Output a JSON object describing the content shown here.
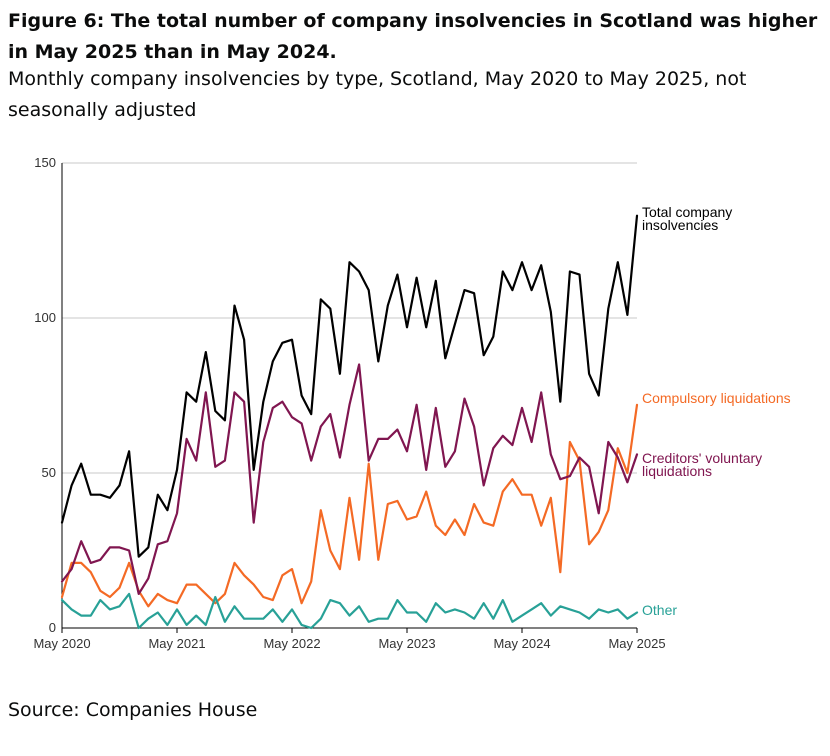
{
  "header": {
    "title": "Figure 6: The total number of company insolvencies in Scotland was higher in May 2025 than in May 2024.",
    "subtitle": "Monthly company insolvencies by type, Scotland, May 2020 to May 2025, not seasonally adjusted"
  },
  "footer": {
    "source": "Source: Companies House"
  },
  "chart_data": {
    "type": "line",
    "x": [
      "2020-05",
      "2020-06",
      "2020-07",
      "2020-08",
      "2020-09",
      "2020-10",
      "2020-11",
      "2020-12",
      "2021-01",
      "2021-02",
      "2021-03",
      "2021-04",
      "2021-05",
      "2021-06",
      "2021-07",
      "2021-08",
      "2021-09",
      "2021-10",
      "2021-11",
      "2021-12",
      "2022-01",
      "2022-02",
      "2022-03",
      "2022-04",
      "2022-05",
      "2022-06",
      "2022-07",
      "2022-08",
      "2022-09",
      "2022-10",
      "2022-11",
      "2022-12",
      "2023-01",
      "2023-02",
      "2023-03",
      "2023-04",
      "2023-05",
      "2023-06",
      "2023-07",
      "2023-08",
      "2023-09",
      "2023-10",
      "2023-11",
      "2023-12",
      "2024-01",
      "2024-02",
      "2024-03",
      "2024-04",
      "2024-05",
      "2024-06",
      "2024-07",
      "2024-08",
      "2024-09",
      "2024-10",
      "2024-11",
      "2024-12",
      "2025-01",
      "2025-02",
      "2025-03",
      "2025-04",
      "2025-05"
    ],
    "x_tick_labels": [
      "May 2020",
      "May 2021",
      "May 2022",
      "May 2023",
      "May 2024",
      "May 2025"
    ],
    "y_ticks": [
      0,
      50,
      100,
      150
    ],
    "ylim": [
      0,
      150
    ],
    "grid": true,
    "legend": "direct labels at right end of lines",
    "series": [
      {
        "name": "Total company insolvencies",
        "color": "#000000",
        "values": [
          34,
          46,
          53,
          43,
          43,
          42,
          46,
          57,
          23,
          26,
          43,
          38,
          51,
          76,
          73,
          89,
          70,
          67,
          104,
          93,
          51,
          73,
          86,
          92,
          93,
          75,
          69,
          106,
          103,
          82,
          118,
          115,
          109,
          86,
          104,
          114,
          97,
          113,
          97,
          112,
          87,
          98,
          109,
          108,
          88,
          94,
          115,
          109,
          118,
          109,
          117,
          102,
          73,
          115,
          114,
          82,
          75,
          103,
          118,
          101,
          133
        ]
      },
      {
        "name": "Compulsory liquidations",
        "color": "#f46a25",
        "values": [
          10,
          21,
          21,
          18,
          12,
          10,
          13,
          21,
          12,
          7,
          11,
          9,
          8,
          14,
          14,
          11,
          8,
          11,
          21,
          17,
          14,
          10,
          9,
          17,
          19,
          8,
          15,
          38,
          25,
          19,
          42,
          22,
          53,
          22,
          40,
          41,
          35,
          36,
          44,
          33,
          30,
          35,
          30,
          40,
          34,
          33,
          44,
          48,
          43,
          43,
          33,
          42,
          18,
          60,
          54,
          27,
          31,
          38,
          58,
          50,
          72
        ]
      },
      {
        "name": "Creditors' voluntary liquidations",
        "color": "#801650",
        "values": [
          15,
          19,
          28,
          21,
          22,
          26,
          26,
          25,
          11,
          16,
          27,
          28,
          37,
          61,
          54,
          76,
          52,
          54,
          76,
          73,
          34,
          60,
          71,
          73,
          68,
          66,
          54,
          65,
          69,
          55,
          72,
          85,
          54,
          61,
          61,
          64,
          57,
          72,
          51,
          71,
          52,
          57,
          74,
          65,
          46,
          58,
          62,
          59,
          71,
          60,
          76,
          56,
          48,
          49,
          55,
          52,
          37,
          60,
          55,
          47,
          56
        ]
      },
      {
        "name": "Other",
        "color": "#28a197",
        "values": [
          9,
          6,
          4,
          4,
          9,
          6,
          7,
          11,
          0,
          3,
          5,
          1,
          6,
          1,
          4,
          1,
          10,
          2,
          7,
          3,
          3,
          3,
          6,
          2,
          6,
          1,
          0,
          3,
          9,
          8,
          4,
          7,
          2,
          3,
          3,
          9,
          5,
          5,
          2,
          8,
          5,
          6,
          5,
          3,
          8,
          3,
          9,
          2,
          4,
          6,
          8,
          4,
          7,
          6,
          5,
          3,
          6,
          5,
          6,
          3,
          5
        ]
      }
    ]
  }
}
